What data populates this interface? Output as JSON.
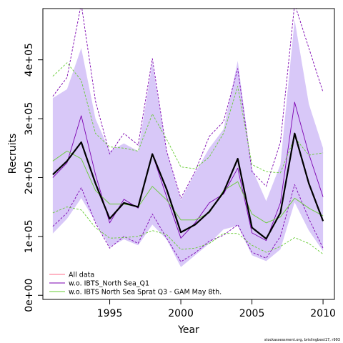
{
  "chart_data": {
    "type": "line",
    "xlabel": "Year",
    "ylabel": "Recruits",
    "xlim": [
      1990.3,
      2010.8
    ],
    "ylim": [
      -7000,
      487000
    ],
    "x_ticks": [
      1995,
      2000,
      2005,
      2010
    ],
    "x_tick_labels": [
      "1995",
      "2000",
      "2005",
      "2010"
    ],
    "y_ticks": [
      0,
      100000,
      200000,
      300000,
      400000
    ],
    "y_tick_labels": [
      "0e+00",
      "1e+05",
      "2e+05",
      "3e+05",
      "4e+05"
    ],
    "x": [
      1991,
      1992,
      1993,
      1994,
      1995,
      1996,
      1997,
      1998,
      1999,
      2000,
      2001,
      2002,
      2003,
      2004,
      2005,
      2006,
      2007,
      2008,
      2009,
      2010
    ],
    "band": {
      "color": "#d8c8f8",
      "upper": [
        335000,
        350000,
        420000,
        300000,
        245000,
        258000,
        245000,
        395000,
        245000,
        162000,
        208000,
        250000,
        282000,
        398000,
        215000,
        160000,
        222000,
        468000,
        325000,
        250000
      ],
      "lower": [
        105000,
        130000,
        165000,
        125000,
        82000,
        95000,
        85000,
        120000,
        95000,
        48000,
        68000,
        88000,
        112000,
        118000,
        68000,
        58000,
        78000,
        158000,
        110000,
        75000
      ]
    },
    "series": [
      {
        "name": "All data",
        "color": "#000000",
        "width": 2.2,
        "dash": "",
        "values": [
          205000,
          228000,
          260000,
          190000,
          130000,
          157000,
          150000,
          240000,
          180000,
          107000,
          120000,
          142000,
          175000,
          232000,
          115000,
          96000,
          140000,
          275000,
          190000,
          126000
        ]
      },
      {
        "name": "w.o. IBTS_North Sea_Q1",
        "color": "#7b00b0",
        "width": 0.9,
        "dash": "",
        "values": [
          200000,
          225000,
          305000,
          205000,
          123000,
          163000,
          148000,
          240000,
          167000,
          97000,
          123000,
          157000,
          172000,
          216000,
          106000,
          93000,
          157000,
          328000,
          240000,
          167000
        ]
      },
      {
        "name": "w.o. IBTS_North Sea_Q1 upper",
        "color": "#7b00b0",
        "width": 0.9,
        "dash": "3,2",
        "values": [
          338000,
          370000,
          495000,
          330000,
          240000,
          275000,
          255000,
          402000,
          245000,
          165000,
          210000,
          270000,
          295000,
          385000,
          210000,
          185000,
          260000,
          495000,
          420000,
          345000
        ]
      },
      {
        "name": "w.o. IBTS_North Sea_Q1 lower",
        "color": "#7b00b0",
        "width": 0.9,
        "dash": "3,2",
        "values": [
          117000,
          140000,
          183000,
          123000,
          80000,
          100000,
          88000,
          138000,
          97000,
          57000,
          72000,
          92000,
          102000,
          120000,
          73000,
          63000,
          100000,
          188000,
          130000,
          80000
        ]
      },
      {
        "name": "w.o. IBTS North Sea Sprat Q3 - GAM May 8th.",
        "color": "#66cc33",
        "width": 0.9,
        "dash": "",
        "values": [
          228000,
          245000,
          232000,
          178000,
          155000,
          155000,
          150000,
          185000,
          162000,
          128000,
          128000,
          140000,
          178000,
          193000,
          138000,
          123000,
          133000,
          165000,
          148000,
          135000
        ]
      },
      {
        "name": "w.o. IBTS North Sea Sprat Q3 upper",
        "color": "#66cc33",
        "width": 0.9,
        "dash": "3,2",
        "values": [
          372000,
          395000,
          365000,
          275000,
          252000,
          250000,
          245000,
          308000,
          265000,
          218000,
          215000,
          235000,
          275000,
          355000,
          222000,
          210000,
          208000,
          268000,
          238000,
          242000
        ]
      },
      {
        "name": "w.o. IBTS North Sea Sprat Q3 lower",
        "color": "#66cc33",
        "width": 0.9,
        "dash": "3,2",
        "values": [
          140000,
          150000,
          145000,
          115000,
          97000,
          98000,
          100000,
          110000,
          103000,
          78000,
          80000,
          88000,
          105000,
          105000,
          85000,
          73000,
          83000,
          98000,
          88000,
          70000
        ]
      }
    ],
    "legend": {
      "position": "bottom-left",
      "items": [
        {
          "label": "All data",
          "color": "#ff6b8a"
        },
        {
          "label": "w.o. IBTS_North Sea_Q1",
          "color": "#7b00b0"
        },
        {
          "label": "w.o. IBTS North Sea Sprat Q3 - GAM May 8th.",
          "color": "#66cc33"
        }
      ]
    },
    "footnote": "stockassessment.org, brislingbest17, r993"
  }
}
